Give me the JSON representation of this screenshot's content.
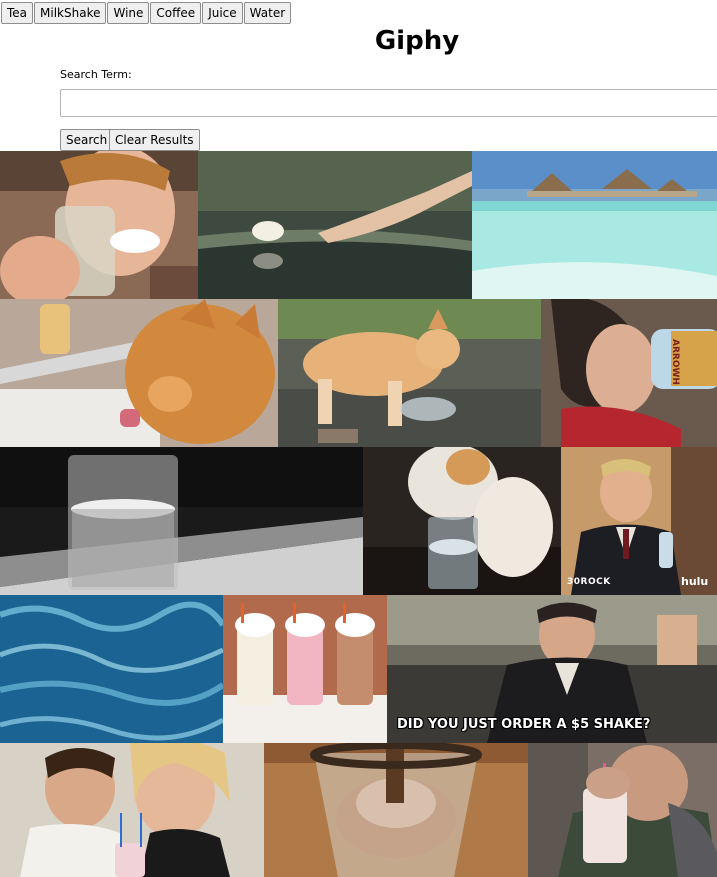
{
  "topics": [
    "Tea",
    "MilkShake",
    "Wine",
    "Coffee",
    "Juice",
    "Water"
  ],
  "page_title": "Giphy",
  "search": {
    "label": "Search Term:",
    "value": "",
    "placeholder": ""
  },
  "actions": {
    "search_label": "Search",
    "clear_label": "Clear Results"
  },
  "results": [
    {
      "name": "gif-man-drinking-glass"
    },
    {
      "name": "gif-hand-touching-water-lily"
    },
    {
      "name": "gif-tropical-overwater-bungalows"
    },
    {
      "name": "gif-cat-drinking-from-faucet"
    },
    {
      "name": "gif-corgi-splashing-water"
    },
    {
      "name": "gif-woman-drinking-water-bottle",
      "overlay_text": "ARROWH"
    },
    {
      "name": "gif-glass-of-water-bw"
    },
    {
      "name": "gif-cat-drinking-from-glass"
    },
    {
      "name": "gif-man-holding-water-bottle",
      "overlay_text": "30ROCK",
      "overlay_text_2": "hulu"
    },
    {
      "name": "gif-pool-water-ripples"
    },
    {
      "name": "gif-three-milkshakes"
    },
    {
      "name": "gif-five-dollar-shake",
      "overlay_text": "DID YOU JUST ORDER A $5 SHAKE?"
    },
    {
      "name": "gif-couple-sharing-milkshake"
    },
    {
      "name": "gif-milkshake-pour"
    },
    {
      "name": "gif-man-drinking-milkshake"
    }
  ]
}
